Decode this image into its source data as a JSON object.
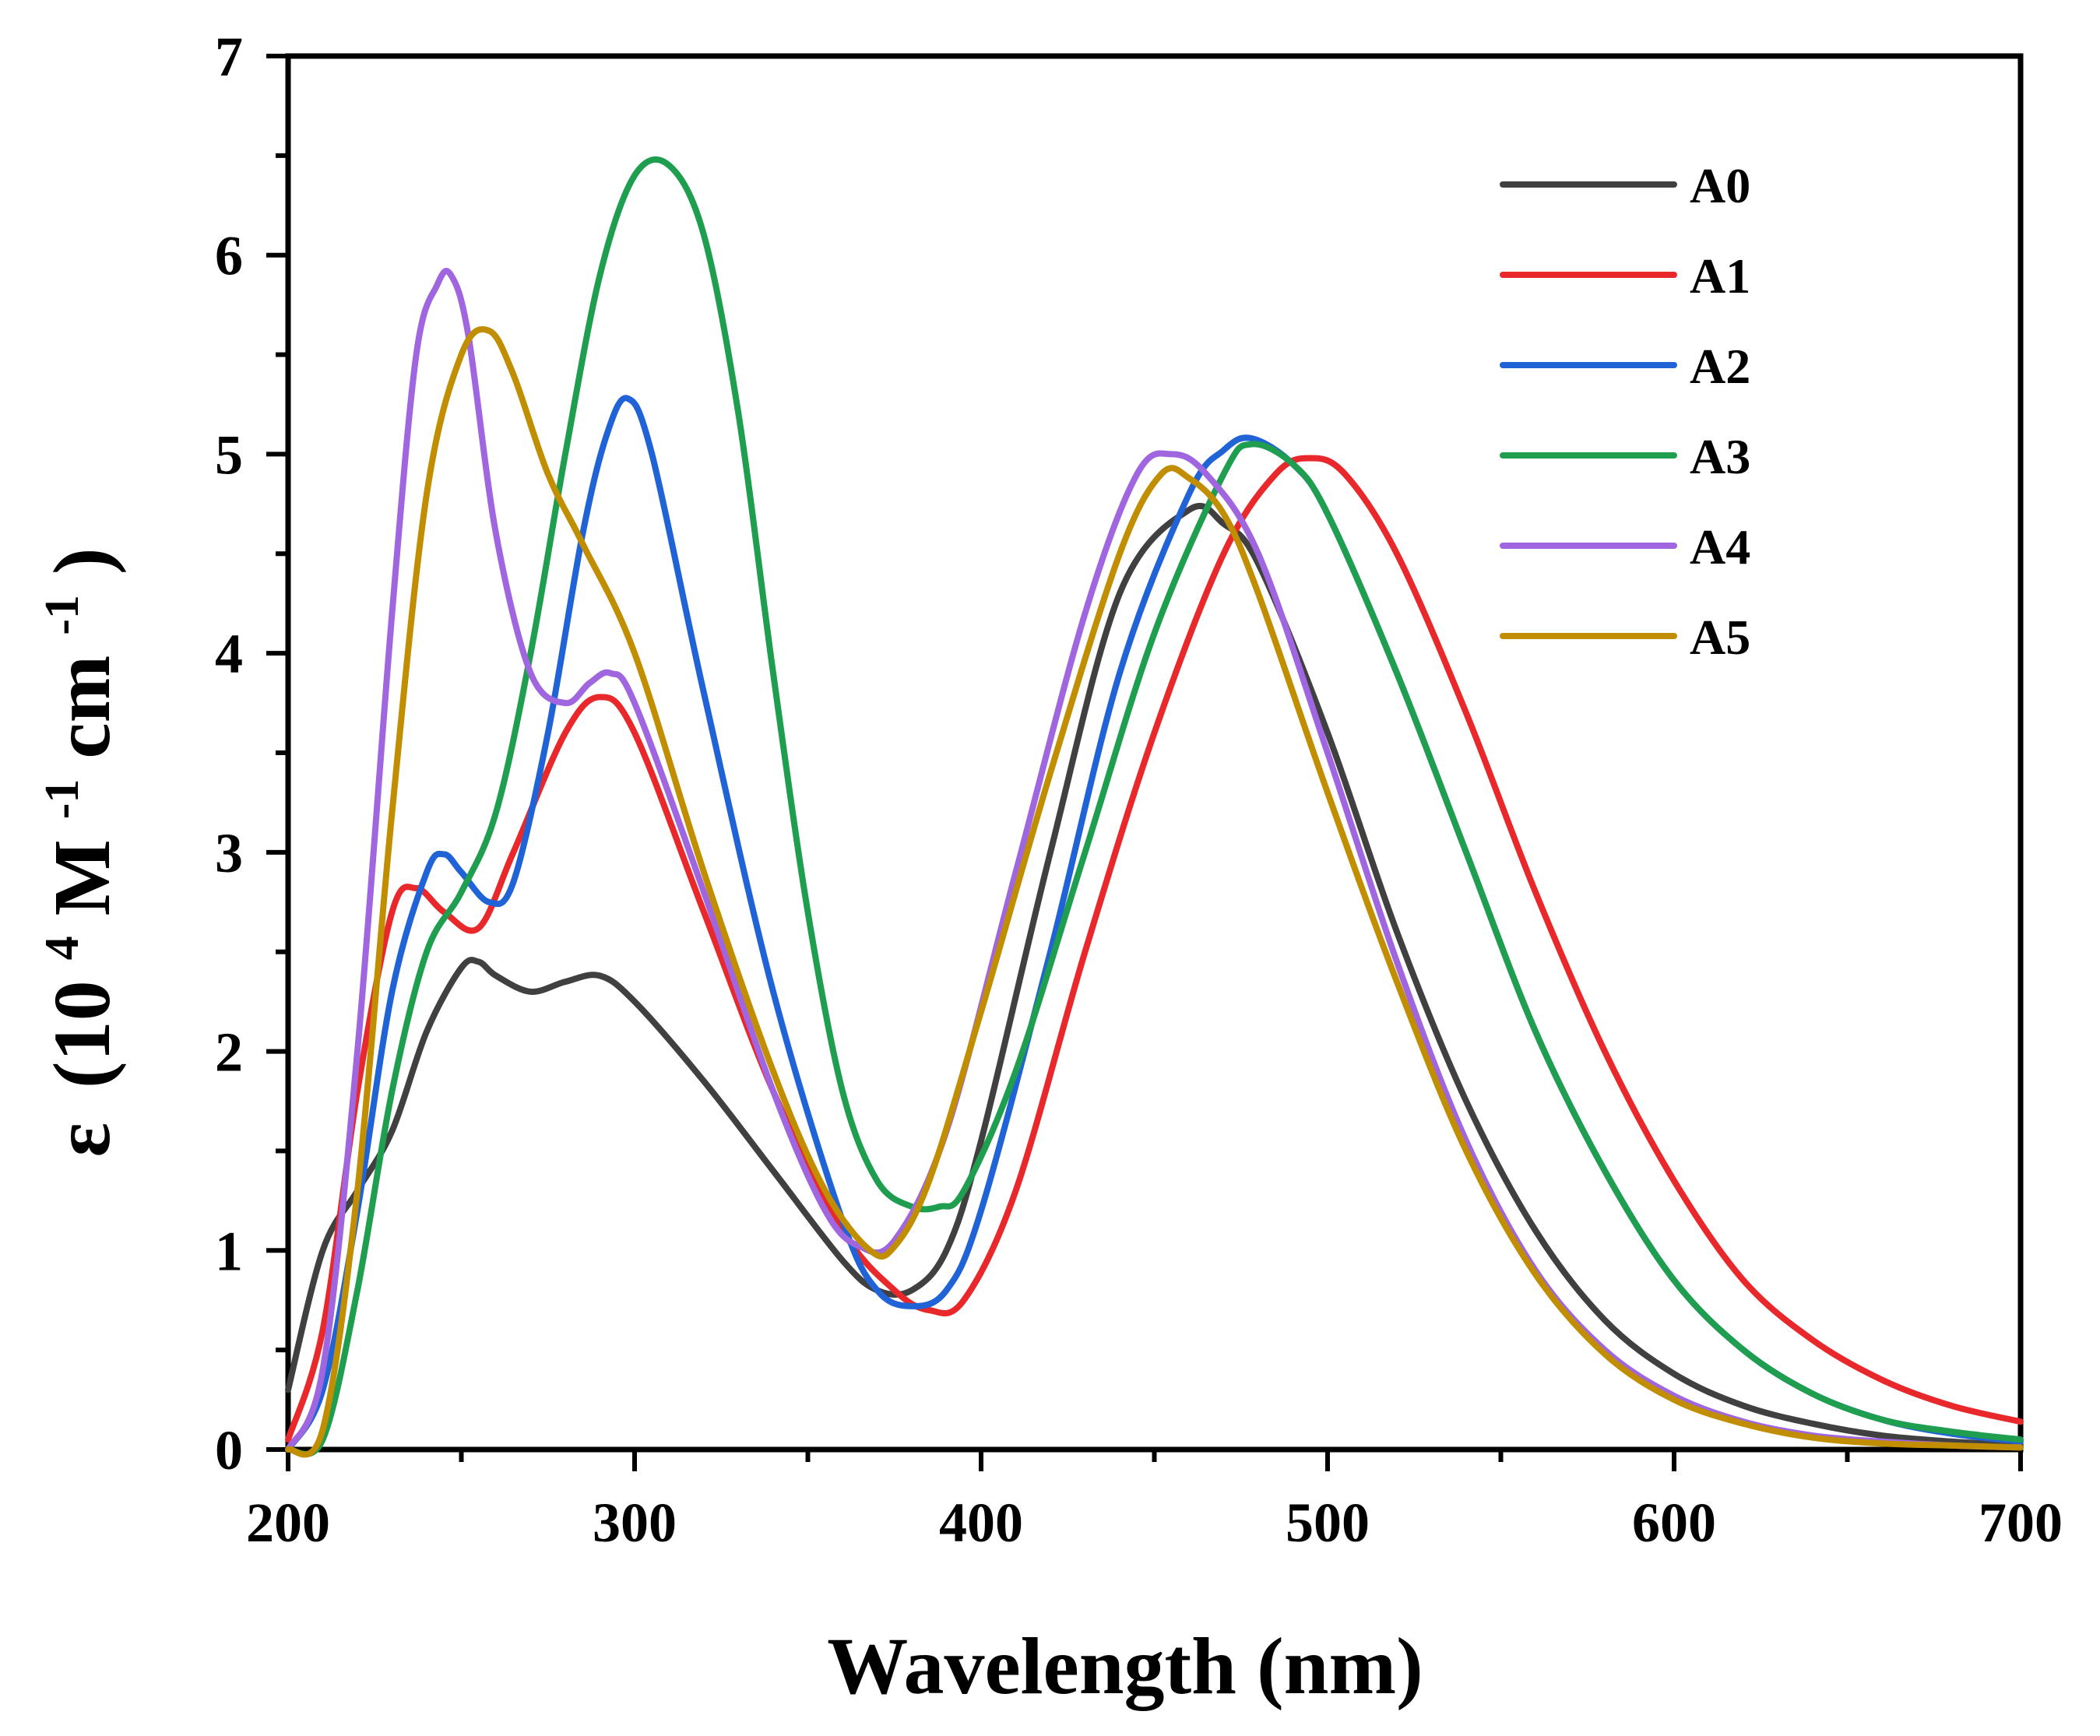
{
  "chart_data": {
    "type": "line",
    "title": "",
    "xlabel": "Wavelength (nm)",
    "ylabel": {
      "symbol": "ε",
      "open": "(10",
      "exp1": "4",
      "mid": " M",
      "exp2": "-1",
      "mid2": "cm",
      "exp3": "-1",
      "close": ")"
    },
    "xlim": [
      200,
      700
    ],
    "ylim": [
      0,
      7
    ],
    "x_ticks": [
      200,
      300,
      400,
      500,
      600,
      700
    ],
    "y_ticks": [
      0,
      1,
      2,
      3,
      4,
      5,
      6,
      7
    ],
    "x_tick_labels": [
      "200",
      "300",
      "400",
      "500",
      "600",
      "700"
    ],
    "y_tick_labels": [
      "0",
      "1",
      "2",
      "3",
      "4",
      "5",
      "6",
      "7"
    ],
    "grid": false,
    "legend_position": "top-right",
    "series": [
      {
        "name": "A0",
        "color": "#404040",
        "x": [
          200,
          210,
          220,
          230,
          240,
          250,
          255,
          260,
          270,
          280,
          290,
          300,
          320,
          340,
          360,
          370,
          380,
          390,
          400,
          420,
          440,
          460,
          470,
          480,
          500,
          520,
          540,
          560,
          580,
          600,
          620,
          640,
          660,
          680,
          700
        ],
        "y": [
          0.3,
          1.0,
          1.3,
          1.6,
          2.1,
          2.42,
          2.45,
          2.38,
          2.3,
          2.35,
          2.38,
          2.25,
          1.85,
          1.4,
          0.95,
          0.8,
          0.8,
          1.0,
          1.55,
          3.0,
          4.3,
          4.72,
          4.65,
          4.45,
          3.6,
          2.6,
          1.75,
          1.1,
          0.65,
          0.38,
          0.22,
          0.13,
          0.07,
          0.04,
          0.02
        ]
      },
      {
        "name": "A1",
        "color": "#e8282a",
        "x": [
          200,
          210,
          220,
          230,
          237,
          245,
          255,
          265,
          280,
          290,
          300,
          320,
          340,
          360,
          375,
          385,
          395,
          410,
          430,
          450,
          470,
          485,
          495,
          505,
          520,
          540,
          560,
          580,
          600,
          620,
          640,
          660,
          680,
          700
        ],
        "y": [
          0.05,
          0.6,
          1.8,
          2.7,
          2.82,
          2.7,
          2.62,
          3.0,
          3.6,
          3.78,
          3.6,
          2.7,
          1.8,
          1.1,
          0.8,
          0.7,
          0.75,
          1.3,
          2.5,
          3.6,
          4.5,
          4.9,
          4.98,
          4.9,
          4.5,
          3.7,
          2.8,
          2.0,
          1.35,
          0.85,
          0.55,
          0.35,
          0.22,
          0.14
        ]
      },
      {
        "name": "A2",
        "color": "#1f63d6",
        "x": [
          200,
          210,
          220,
          230,
          240,
          245,
          250,
          258,
          265,
          275,
          285,
          292,
          298,
          305,
          320,
          340,
          360,
          370,
          380,
          390,
          400,
          420,
          440,
          460,
          470,
          478,
          490,
          500,
          520,
          540,
          560,
          580,
          600,
          620,
          640,
          660,
          680,
          700
        ],
        "y": [
          0.0,
          0.3,
          1.2,
          2.3,
          2.9,
          2.99,
          2.9,
          2.75,
          2.85,
          3.6,
          4.6,
          5.1,
          5.28,
          5.0,
          3.8,
          2.3,
          1.15,
          0.8,
          0.72,
          0.8,
          1.2,
          2.5,
          3.9,
          4.8,
          5.02,
          5.08,
          4.95,
          4.7,
          3.9,
          3.0,
          2.1,
          1.4,
          0.85,
          0.5,
          0.28,
          0.15,
          0.08,
          0.04
        ]
      },
      {
        "name": "A3",
        "color": "#1f9e50",
        "x": [
          200,
          210,
          220,
          230,
          240,
          250,
          260,
          270,
          280,
          290,
          300,
          310,
          320,
          330,
          340,
          350,
          360,
          370,
          380,
          388,
          395,
          410,
          430,
          450,
          470,
          478,
          490,
          500,
          520,
          540,
          560,
          580,
          600,
          620,
          640,
          660,
          680,
          700
        ],
        "y": [
          0.0,
          0.05,
          0.8,
          1.8,
          2.5,
          2.8,
          3.2,
          4.0,
          5.0,
          5.9,
          6.4,
          6.45,
          6.1,
          5.2,
          3.9,
          2.7,
          1.8,
          1.35,
          1.22,
          1.22,
          1.3,
          1.9,
          3.0,
          4.1,
          4.9,
          5.05,
          4.95,
          4.7,
          3.9,
          3.0,
          2.1,
          1.4,
          0.85,
          0.5,
          0.28,
          0.15,
          0.09,
          0.05
        ]
      },
      {
        "name": "A4",
        "color": "#a066e0",
        "x": [
          200,
          210,
          220,
          230,
          237,
          243,
          247,
          252,
          260,
          270,
          280,
          287,
          293,
          300,
          320,
          340,
          355,
          365,
          375,
          390,
          410,
          430,
          445,
          455,
          465,
          480,
          500,
          520,
          540,
          560,
          580,
          600,
          620,
          640,
          660,
          680,
          700
        ],
        "y": [
          0.0,
          0.4,
          2.0,
          4.2,
          5.5,
          5.85,
          5.9,
          5.6,
          4.6,
          3.9,
          3.75,
          3.85,
          3.9,
          3.75,
          2.8,
          1.8,
          1.2,
          1.02,
          1.05,
          1.6,
          2.9,
          4.2,
          4.9,
          5.0,
          4.9,
          4.5,
          3.5,
          2.45,
          1.55,
          0.9,
          0.5,
          0.27,
          0.14,
          0.07,
          0.04,
          0.02,
          0.01
        ]
      },
      {
        "name": "A5",
        "color": "#c08e00",
        "x": [
          200,
          210,
          220,
          230,
          240,
          250,
          258,
          265,
          275,
          285,
          300,
          320,
          340,
          355,
          368,
          375,
          385,
          400,
          420,
          440,
          452,
          460,
          470,
          480,
          500,
          520,
          540,
          560,
          580,
          600,
          620,
          640,
          660,
          680,
          700
        ],
        "y": [
          0.0,
          0.1,
          1.3,
          3.2,
          4.8,
          5.5,
          5.62,
          5.4,
          4.9,
          4.55,
          4.0,
          2.9,
          1.9,
          1.3,
          1.0,
          1.02,
          1.35,
          2.2,
          3.4,
          4.5,
          4.9,
          4.88,
          4.7,
          4.3,
          3.3,
          2.35,
          1.5,
          0.88,
          0.48,
          0.25,
          0.13,
          0.06,
          0.03,
          0.02,
          0.01
        ]
      }
    ]
  }
}
